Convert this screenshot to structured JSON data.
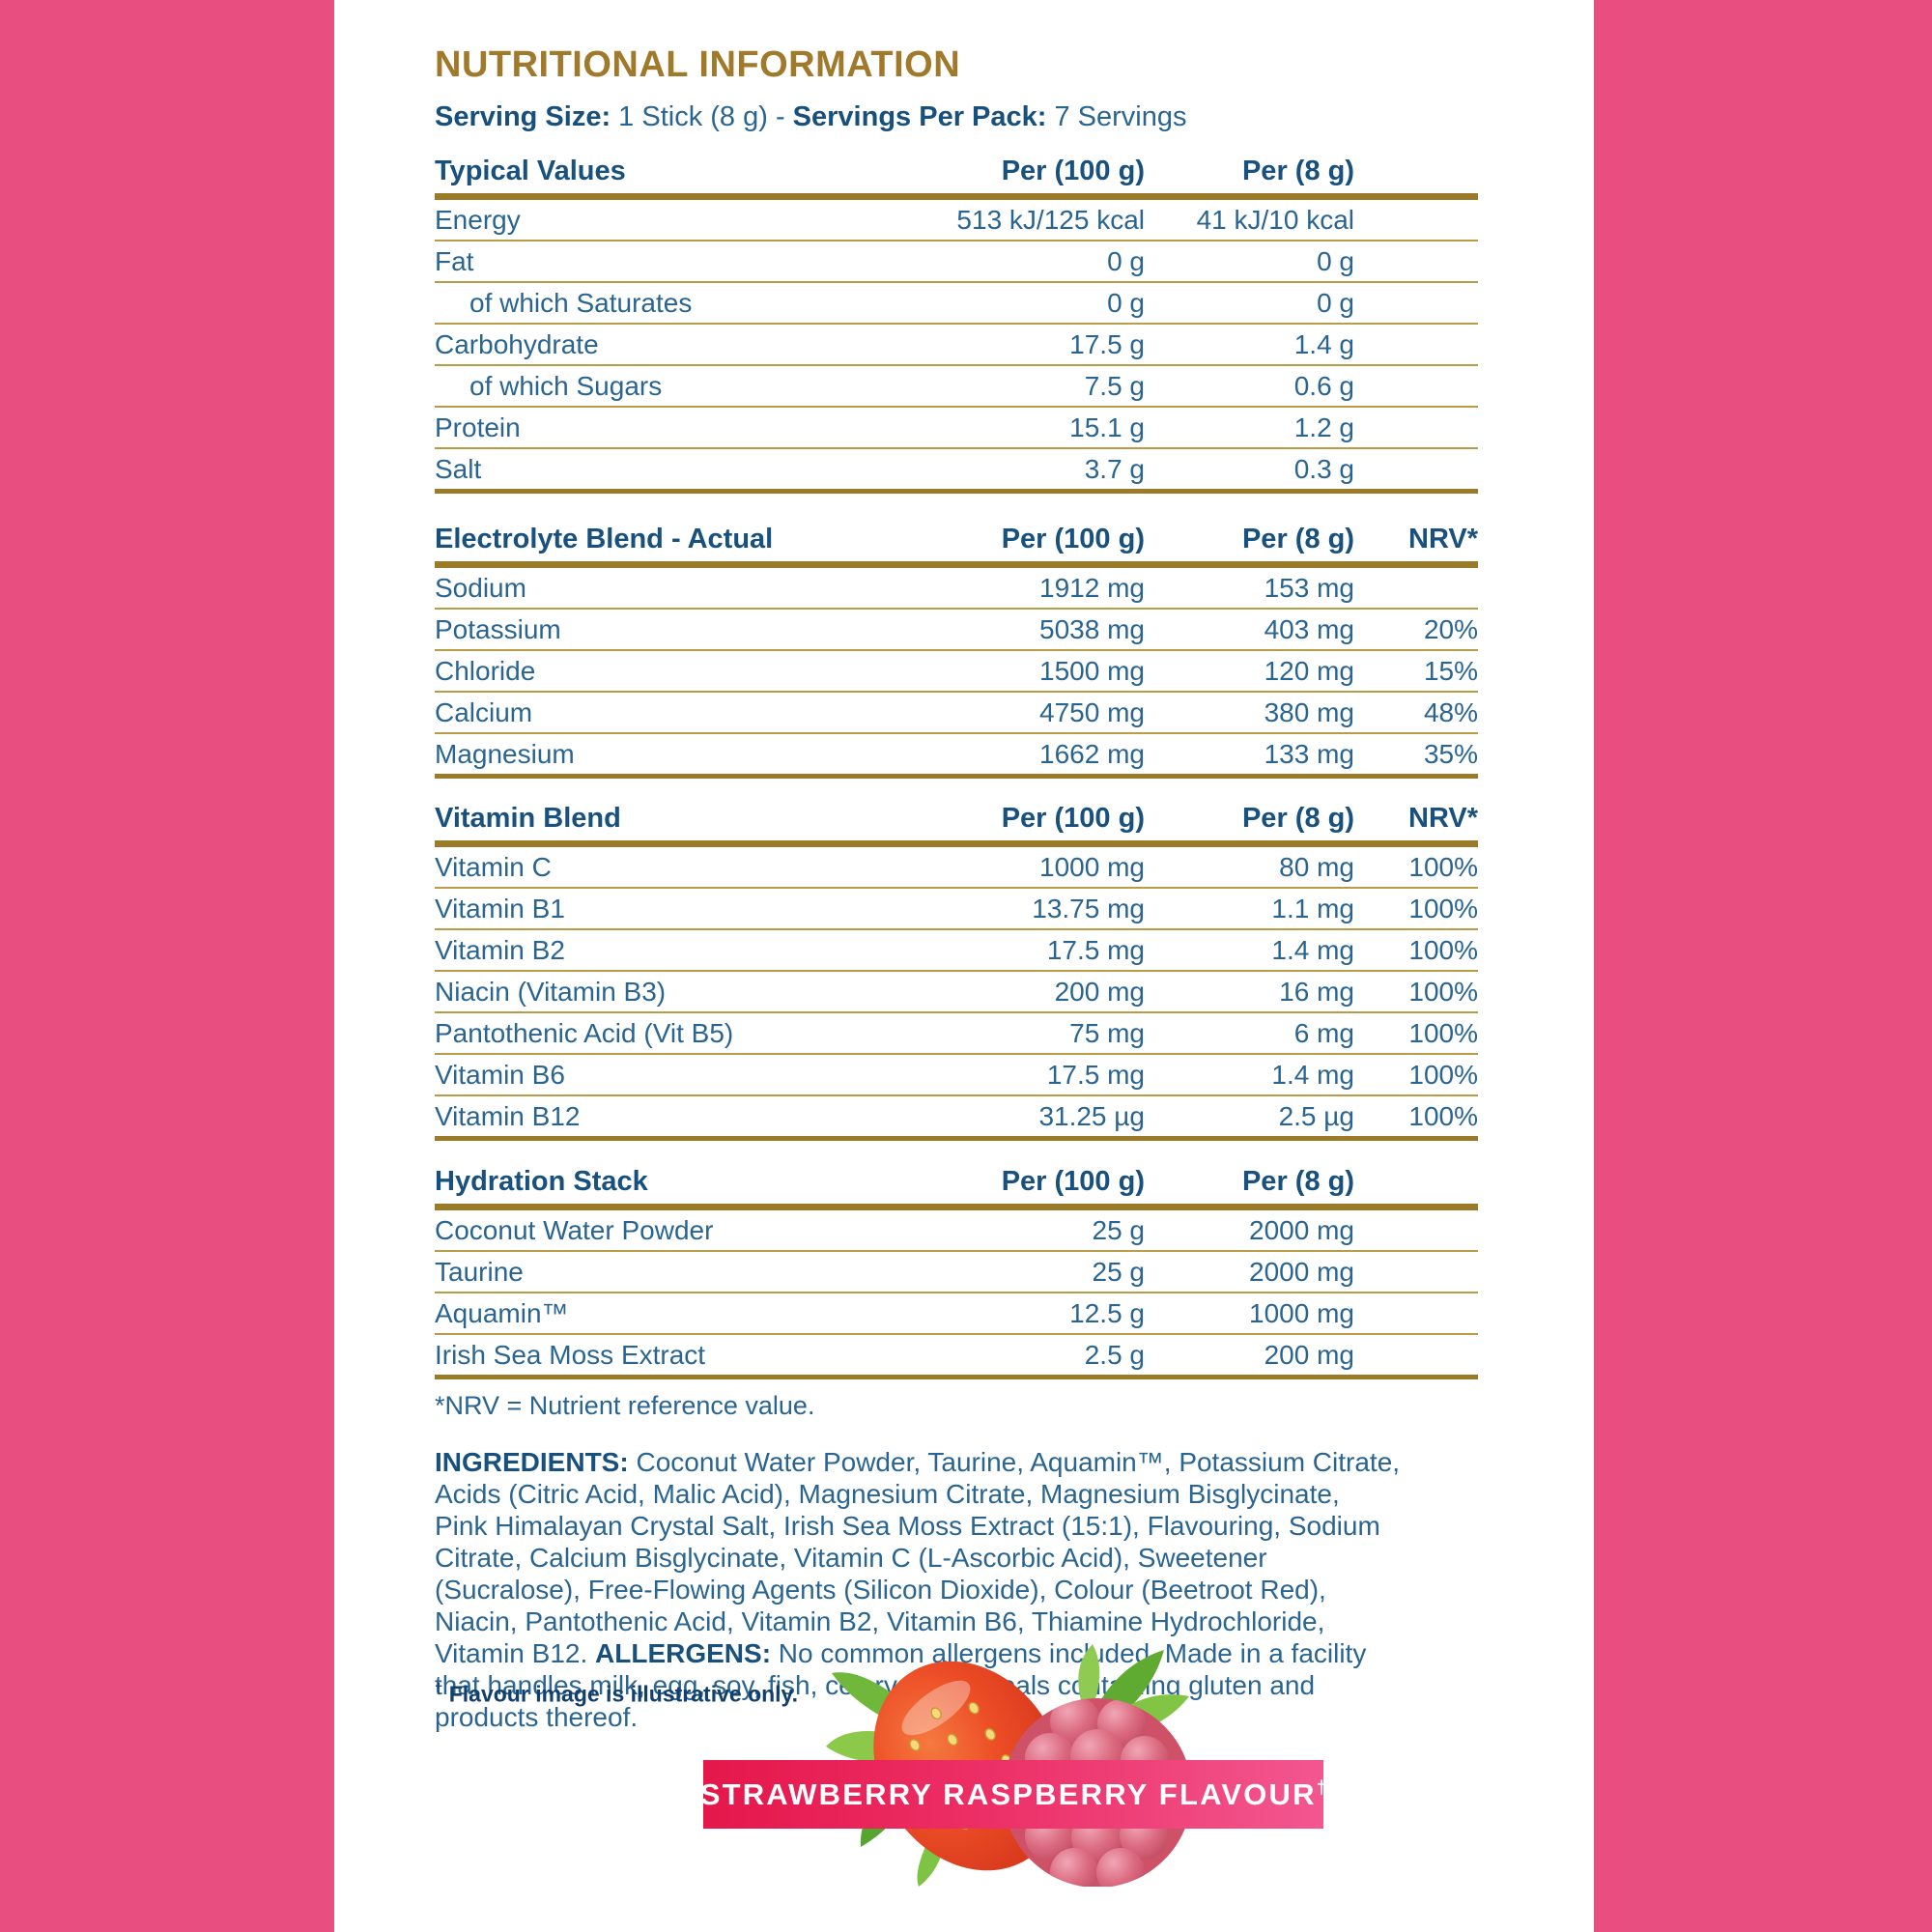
{
  "colors": {
    "border_pink": "#E94E81",
    "heading_gold": "#A0792B",
    "rule_gold_thick": "#9C7B28",
    "rule_gold_thin": "#BA9C48",
    "text_blue": "#2A6592",
    "text_blue_bold": "#17507C",
    "banner_gradient_left": "#E5174B",
    "banner_gradient_right": "#F3568F"
  },
  "page": {
    "title": "NUTRITIONAL INFORMATION"
  },
  "serving_line": [
    {
      "t": "Serving Size:",
      "b": true
    },
    {
      "t": " 1 Stick (8 g)  -  ",
      "b": false
    },
    {
      "t": "Servings Per Pack:",
      "b": true
    },
    {
      "t": " 7 Servings",
      "b": false
    }
  ],
  "table": {
    "sections": [
      {
        "id": "typical-values",
        "title": "Typical Values",
        "col1": "Per (100 g)",
        "col2": "Per (8 g)",
        "col3": "",
        "rows": [
          {
            "label": "Energy",
            "indent": false,
            "per100": "513 kJ/125 kcal",
            "per8": "41 kJ/10 kcal",
            "nrv": ""
          },
          {
            "label": "Fat",
            "indent": false,
            "per100": "0 g",
            "per8": "0 g",
            "nrv": ""
          },
          {
            "label": "of which Saturates",
            "indent": true,
            "per100": "0 g",
            "per8": "0 g",
            "nrv": ""
          },
          {
            "label": "Carbohydrate",
            "indent": false,
            "per100": "17.5 g",
            "per8": "1.4 g",
            "nrv": ""
          },
          {
            "label": "of which Sugars",
            "indent": true,
            "per100": "7.5 g",
            "per8": "0.6 g",
            "nrv": ""
          },
          {
            "label": "Protein",
            "indent": false,
            "per100": "15.1 g",
            "per8": "1.2 g",
            "nrv": ""
          },
          {
            "label": "Salt",
            "indent": false,
            "per100": "3.7 g",
            "per8": "0.3 g",
            "nrv": ""
          }
        ]
      },
      {
        "id": "electrolyte-blend",
        "title": "Electrolyte Blend - Actual",
        "col1": "Per (100 g)",
        "col2": "Per (8 g)",
        "col3": "NRV*",
        "rows": [
          {
            "label": "Sodium",
            "indent": false,
            "per100": "1912 mg",
            "per8": "153 mg",
            "nrv": ""
          },
          {
            "label": "Potassium",
            "indent": false,
            "per100": "5038 mg",
            "per8": "403 mg",
            "nrv": "20%"
          },
          {
            "label": "Chloride",
            "indent": false,
            "per100": "1500 mg",
            "per8": "120 mg",
            "nrv": "15%"
          },
          {
            "label": "Calcium",
            "indent": false,
            "per100": "4750 mg",
            "per8": "380 mg",
            "nrv": "48%"
          },
          {
            "label": "Magnesium",
            "indent": false,
            "per100": "1662 mg",
            "per8": "133 mg",
            "nrv": "35%"
          }
        ]
      },
      {
        "id": "vitamin-blend",
        "title": "Vitamin Blend",
        "col1": "Per (100 g)",
        "col2": "Per (8 g)",
        "col3": "NRV*",
        "rows": [
          {
            "label": "Vitamin C",
            "indent": false,
            "per100": "1000 mg",
            "per8": "80 mg",
            "nrv": "100%"
          },
          {
            "label": "Vitamin B1",
            "indent": false,
            "per100": "13.75 mg",
            "per8": "1.1 mg",
            "nrv": "100%"
          },
          {
            "label": "Vitamin B2",
            "indent": false,
            "per100": "17.5 mg",
            "per8": "1.4 mg",
            "nrv": "100%"
          },
          {
            "label": "Niacin (Vitamin B3)",
            "indent": false,
            "per100": "200 mg",
            "per8": "16 mg",
            "nrv": "100%"
          },
          {
            "label": "Pantothenic Acid (Vit B5)",
            "indent": false,
            "per100": "75 mg",
            "per8": "6 mg",
            "nrv": "100%"
          },
          {
            "label": "Vitamin B6",
            "indent": false,
            "per100": "17.5 mg",
            "per8": "1.4 mg",
            "nrv": "100%"
          },
          {
            "label": "Vitamin B12",
            "indent": false,
            "per100": "31.25 µg",
            "per8": "2.5 µg",
            "nrv": "100%"
          }
        ]
      },
      {
        "id": "hydration-stack",
        "title": "Hydration Stack",
        "col1": "Per (100 g)",
        "col2": "Per (8 g)",
        "col3": "",
        "rows": [
          {
            "label": "Coconut Water Powder",
            "indent": false,
            "per100": "25 g",
            "per8": "2000 mg",
            "nrv": ""
          },
          {
            "label": "Taurine",
            "indent": false,
            "per100": "25 g",
            "per8": "2000 mg",
            "nrv": ""
          },
          {
            "label": "Aquamin™",
            "indent": false,
            "per100": "12.5 g",
            "per8": "1000 mg",
            "nrv": ""
          },
          {
            "label": "Irish Sea Moss Extract",
            "indent": false,
            "per100": "2.5 g",
            "per8": "200 mg",
            "nrv": ""
          }
        ]
      }
    ],
    "footnote": "*NRV = Nutrient reference value."
  },
  "ingredients": {
    "lines": [
      [
        {
          "t": "INGREDIENTS:",
          "b": true
        },
        {
          "t": " Coconut Water Powder, Taurine, Aquamin™, Potassium Citrate,",
          "b": false
        }
      ],
      [
        {
          "t": "Acids (Citric Acid, Malic Acid), Magnesium Citrate, Magnesium Bisglycinate,",
          "b": false
        }
      ],
      [
        {
          "t": "Pink Himalayan Crystal Salt, Irish Sea Moss Extract (15:1), Flavouring, Sodium",
          "b": false
        }
      ],
      [
        {
          "t": "Citrate, Calcium Bisglycinate, Vitamin C (L-Ascorbic Acid), Sweetener",
          "b": false
        }
      ],
      [
        {
          "t": "(Sucralose), Free-Flowing Agents (Silicon Dioxide), Colour (Beetroot Red),",
          "b": false
        }
      ],
      [
        {
          "t": "Niacin, Pantothenic Acid, Vitamin B2, Vitamin B6, Thiamine Hydrochloride,",
          "b": false
        }
      ],
      [
        {
          "t": "Vitamin B12. ",
          "b": false
        },
        {
          "t": "ALLERGENS:",
          "b": true
        },
        {
          "t": " No common allergens included. Made in a facility",
          "b": false
        }
      ],
      [
        {
          "t": "that handles milk, egg, soy, fish, celery, and cereals containing gluten and",
          "b": false
        }
      ],
      [
        {
          "t": "products thereof.",
          "b": false
        }
      ]
    ]
  },
  "flavour_note": {
    "dagger": "†",
    "text": " Flavour image is illustrative only."
  },
  "banner": {
    "text": "STRAWBERRY RASPBERRY FLAVOUR",
    "dagger": "†"
  }
}
